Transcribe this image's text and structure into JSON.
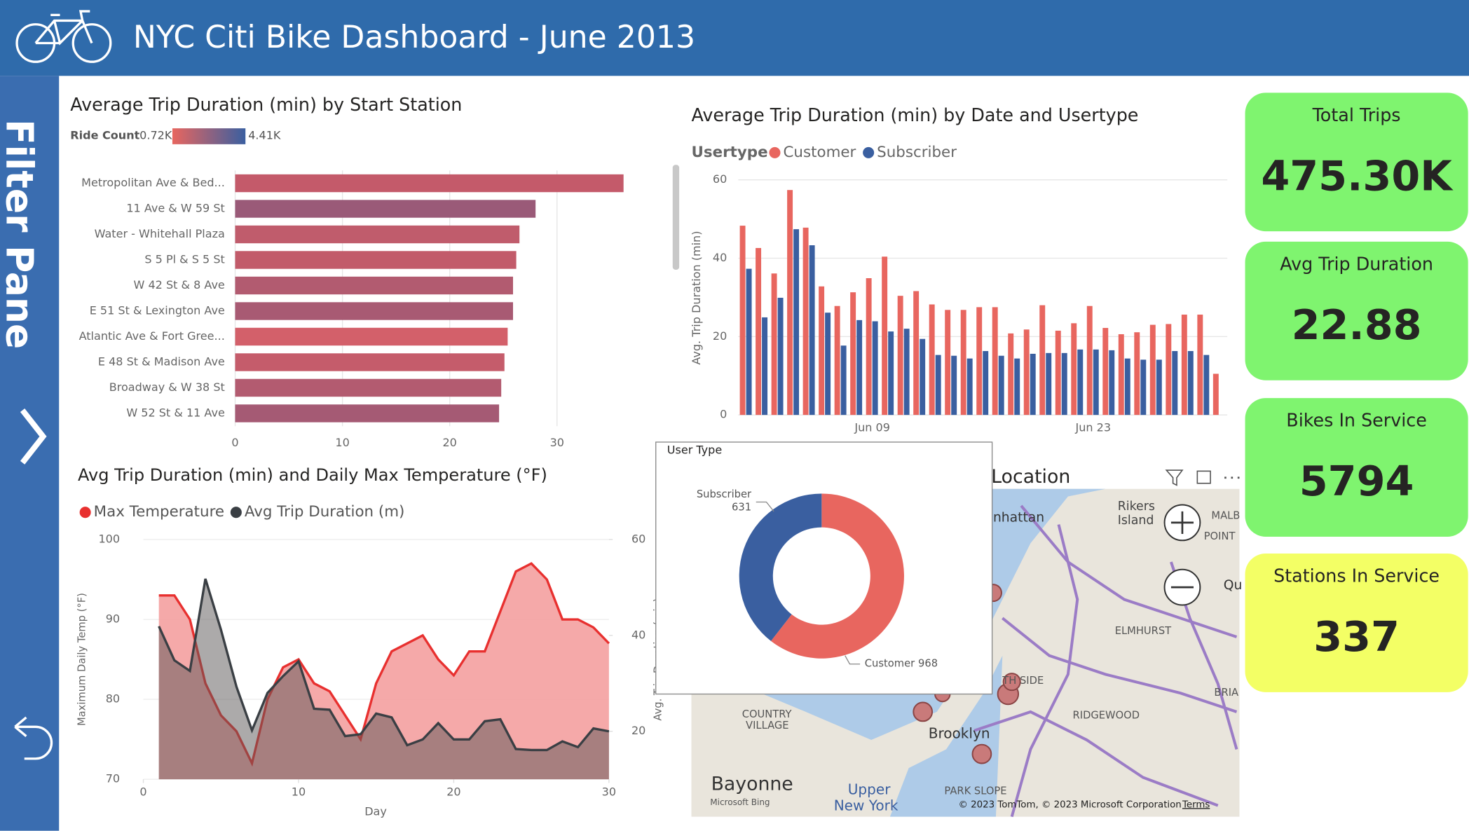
{
  "header": {
    "title": "NYC Citi Bike Dashboard - June 2013"
  },
  "filter_pane": {
    "label": "Filter Pane"
  },
  "chart_data": [
    {
      "type": "hbar",
      "title": "Average Trip Duration (min) by Start Station",
      "legend_title": "Ride Count",
      "legend_min": "0.72K",
      "legend_max": "4.41K",
      "categories": [
        "Metropolitan Ave & Bed...",
        "11 Ave & W 59 St",
        "Water - Whitehall Plaza",
        "S 5 Pl & S 5 St",
        "W 42 St & 8 Ave",
        "E 51 St & Lexington Ave",
        "Atlantic Ave & Fort Gree...",
        "E 48 St & Madison Ave",
        "Broadway & W 38 St",
        "W 52 St & 11 Ave"
      ],
      "values": [
        36.2,
        28.0,
        26.5,
        26.2,
        25.9,
        25.9,
        25.4,
        25.1,
        24.8,
        24.6
      ],
      "colors": [
        "#c45a6a",
        "#9a5a78",
        "#c05c6c",
        "#c25b6a",
        "#b25b70",
        "#a85a73",
        "#d3606a",
        "#c55c6b",
        "#b35b70",
        "#a55a74"
      ],
      "xlim": [
        0,
        36.5
      ],
      "xticks": [
        0,
        10,
        20,
        30
      ],
      "grid": true
    },
    {
      "type": "column",
      "title": "Average Trip Duration (min) by Date and Usertype",
      "legend_title": "Usertype",
      "y_label": "Avg. Trip Duration (min)",
      "categories": [
        null,
        null,
        null,
        null,
        null,
        null,
        null,
        null,
        "Jun 09",
        null,
        null,
        null,
        null,
        null,
        null,
        null,
        null,
        null,
        null,
        null,
        null,
        null,
        "Jun 23",
        null,
        null,
        null,
        null,
        null,
        null,
        null,
        null
      ],
      "series": [
        {
          "name": "Customer",
          "color": "#e8665f",
          "values": [
            48.3,
            42.6,
            36.1,
            57.4,
            47.8,
            32.8,
            27.8,
            31.3,
            34.9,
            40.4,
            30.4,
            31.6,
            28.2,
            26.8,
            26.8,
            27.5,
            27.5,
            20.8,
            21.8,
            28.0,
            21.5,
            23.4,
            27.8,
            22.2,
            20.6,
            21.1,
            23.0,
            23.2,
            25.6,
            25.6,
            10.5
          ]
        },
        {
          "name": "Subscriber",
          "color": "#3a5fa0",
          "values": [
            37.3,
            24.9,
            29.9,
            47.4,
            43.3,
            26.1,
            17.7,
            24.2,
            23.9,
            21.3,
            22.0,
            19.4,
            15.3,
            15.1,
            14.4,
            16.3,
            15.1,
            14.4,
            15.6,
            15.8,
            15.8,
            16.7,
            16.7,
            16.5,
            14.4,
            14.1,
            14.1,
            16.3,
            16.3,
            15.3,
            null
          ]
        }
      ],
      "ylim": [
        0,
        60
      ],
      "yticks": [
        0,
        20,
        40,
        60
      ],
      "grid": true
    },
    {
      "type": "area",
      "title": "Avg Trip Duration (min) and Daily Max Temperature (°F)",
      "x_label": "Day",
      "y_label": "Maximum Daily Temp (°F)",
      "y2_label": "Avg. Trip Duration (min)",
      "x": [
        1,
        2,
        3,
        4,
        5,
        6,
        7,
        8,
        9,
        10,
        11,
        12,
        13,
        14,
        15,
        16,
        17,
        18,
        19,
        20,
        21,
        22,
        23,
        24,
        25,
        26,
        27,
        28,
        29,
        30
      ],
      "series": [
        {
          "name": "Max Temperature",
          "color": "#e8302f",
          "fill": "#f4a0a0",
          "values": [
            93,
            93,
            90,
            82,
            78,
            76,
            72,
            80,
            84,
            85,
            82,
            81,
            78,
            75,
            82,
            86,
            87,
            88,
            85,
            83,
            86,
            86,
            91,
            96,
            97,
            95,
            90,
            90,
            89,
            87
          ]
        },
        {
          "name": "Avg Trip Duration (m)",
          "color": "#3a3f44",
          "fill": "#5a5555",
          "axis": "y2",
          "values": [
            41.9,
            34.8,
            32.6,
            51.8,
            41.2,
            29.3,
            20.2,
            28.0,
            31.5,
            34.6,
            24.7,
            24.5,
            19.0,
            19.4,
            23.7,
            22.9,
            17.1,
            18.3,
            21.7,
            18.3,
            18.3,
            22.1,
            22.5,
            16.3,
            16.1,
            16.1,
            17.9,
            16.7,
            20.6,
            20.0
          ]
        }
      ],
      "xlim": [
        0,
        30
      ],
      "xticks": [
        0,
        10,
        20,
        30
      ],
      "ylim": [
        70,
        100
      ],
      "yticks": [
        70,
        80,
        90,
        100
      ],
      "y2lim": [
        10,
        60
      ],
      "y2ticks": [
        20,
        40,
        60
      ],
      "grid": true
    },
    {
      "type": "donut",
      "title": "User Type",
      "categories": [
        "Customer",
        "Subscriber"
      ],
      "values": [
        968,
        631
      ],
      "colors": [
        "#e8665f",
        "#3a5fa0"
      ]
    }
  ],
  "map": {
    "title": "Location",
    "labels": [
      "nhattan",
      "Rikers",
      "Island",
      "MALB",
      "POINT",
      "Qu",
      "ELMHURST",
      "BRIA",
      "RIDGEWOOD",
      "Brooklyn",
      "COUNTRY",
      "VILLAGE",
      "Bayonne",
      "Upper",
      "New York",
      "PARK SLOPE",
      "TH SIDE"
    ],
    "brand": "Microsoft Bing",
    "attribution": "© 2023 TomTom, © 2023 Microsoft Corporation",
    "terms": "Terms"
  },
  "kpis": [
    {
      "label": "Total Trips",
      "value": "475.30K"
    },
    {
      "label": "Avg Trip Duration",
      "value": "22.88"
    },
    {
      "label": "Bikes In Service",
      "value": "5794"
    },
    {
      "label": "Stations In Service",
      "value": "337"
    }
  ]
}
